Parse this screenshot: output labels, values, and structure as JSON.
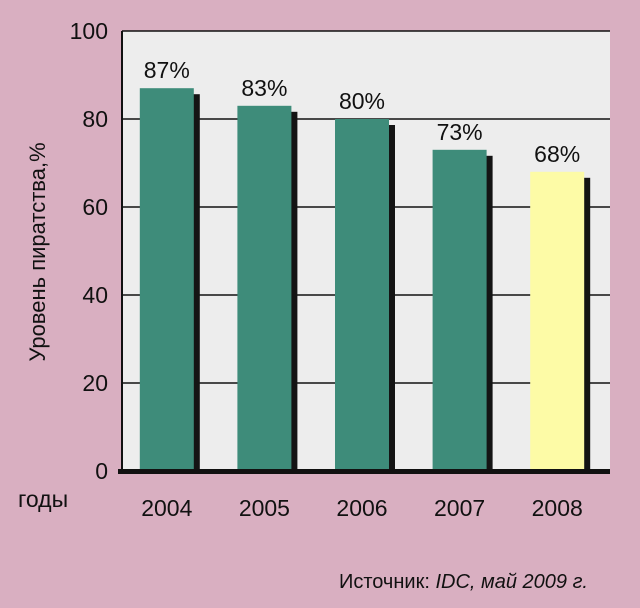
{
  "chart_data": {
    "type": "bar",
    "categories": [
      "2004",
      "2005",
      "2006",
      "2007",
      "2008"
    ],
    "values": [
      87,
      83,
      80,
      73,
      68
    ],
    "data_labels": [
      "87%",
      "83%",
      "80%",
      "73%",
      "68%"
    ],
    "ylabel": "Уровень пиратства,%",
    "xlabel": "годы",
    "ylim": [
      0,
      100
    ],
    "yticks": [
      "0",
      "20",
      "40",
      "60",
      "80",
      "100"
    ],
    "grid": true,
    "colors": {
      "bar": "#3e8c7a",
      "highlight": "#fdfba6",
      "shadow": "#141414",
      "plot_bg": "#ededed",
      "page_bg": "#d9afc1"
    },
    "highlight_index": 4
  },
  "source": {
    "prefix": "Источник: ",
    "name": "IDC",
    "date": ", май 2009 г."
  }
}
